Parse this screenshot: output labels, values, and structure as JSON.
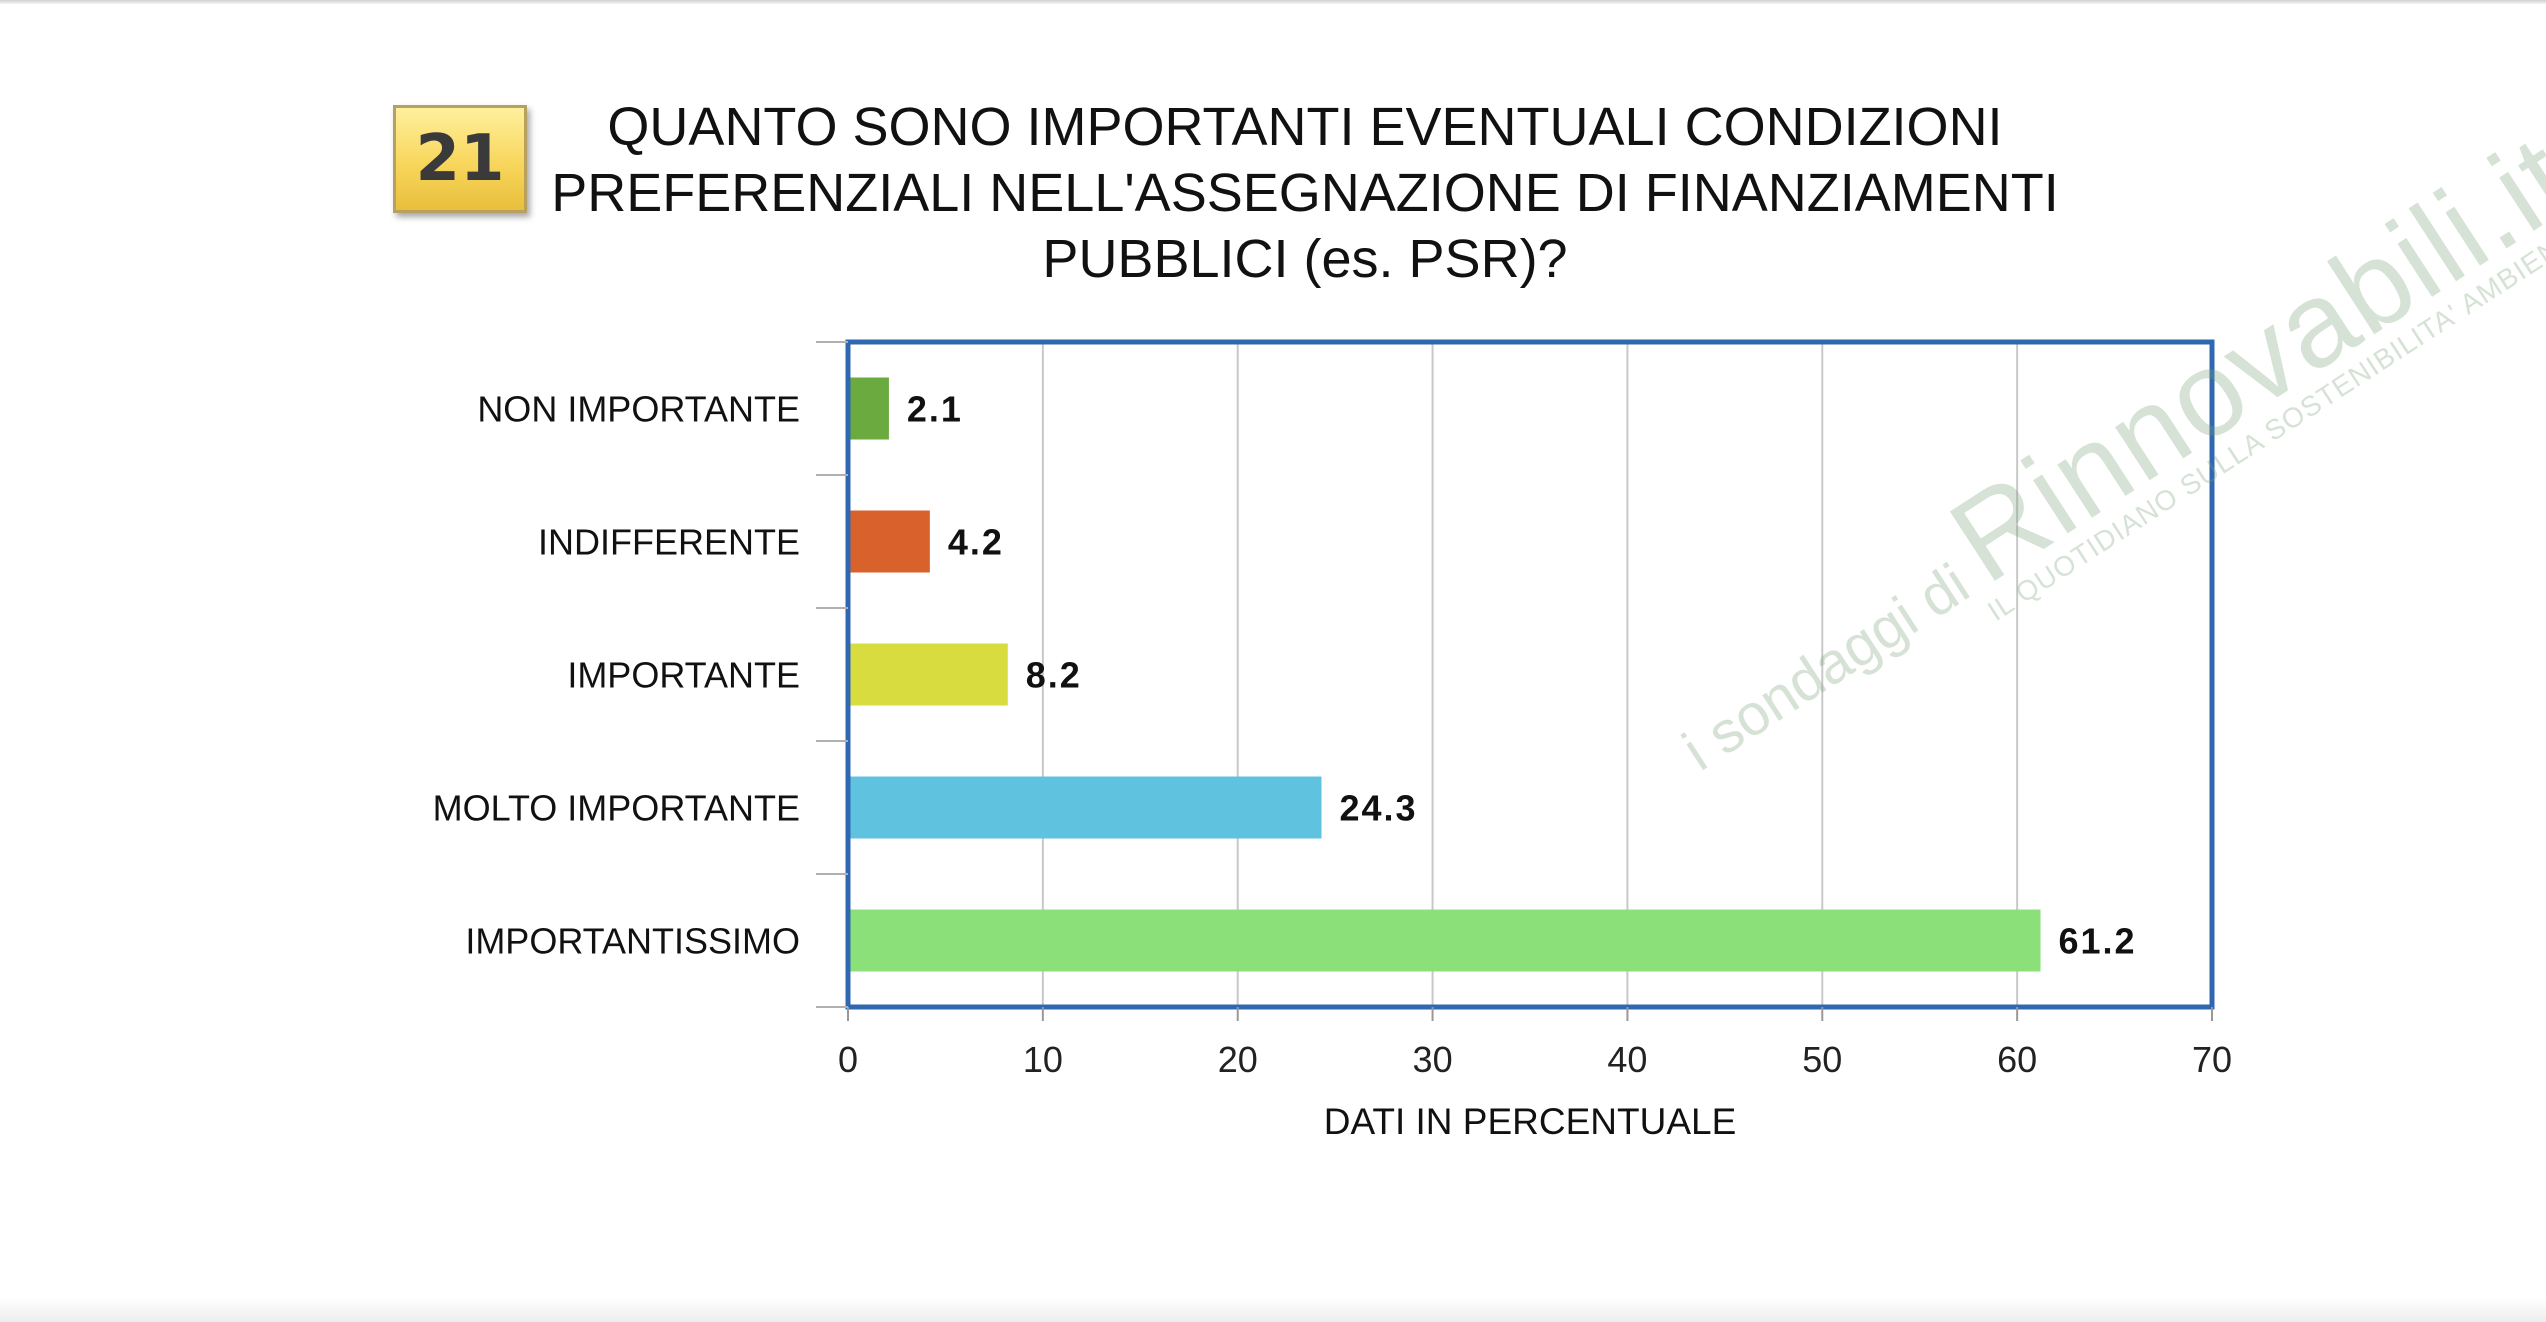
{
  "question": {
    "number": "21",
    "title_lines": [
      "QUANTO SONO IMPORTANTI EVENTUALI CONDIZIONI",
      "PREFERENZIALI NELL'ASSEGNAZIONE DI FINANZIAMENTI",
      "PUBBLICI (es. PSR)?"
    ]
  },
  "watermark": {
    "prefix": "i sondaggi di ",
    "brand": "Rinnovabili.it",
    "tagline": "IL QUOTIDIANO SULLA SOSTENIBILITA' AMBIENTALE"
  },
  "chart_data": {
    "type": "bar",
    "orientation": "horizontal",
    "categories": [
      "NON IMPORTANTE",
      "INDIFFERENTE",
      "IMPORTANTE",
      "MOLTO IMPORTANTE",
      "IMPORTANTISSIMO"
    ],
    "values": [
      2.1,
      4.2,
      8.2,
      24.3,
      61.2
    ],
    "value_labels": [
      "2.1",
      "4.2",
      "8.2",
      "24.3",
      "61.2"
    ],
    "colors": [
      "#6aaa3f",
      "#d8612c",
      "#d9dc3e",
      "#5fc3e0",
      "#8ce07a"
    ],
    "xlabel": "DATI IN PERCENTUALE",
    "ylabel": "",
    "xlim": [
      0,
      70
    ],
    "xticks": [
      0,
      10,
      20,
      30,
      40,
      50,
      60,
      70
    ],
    "grid": "vertical",
    "legend": "none",
    "frame_color": "#2f67b0"
  }
}
